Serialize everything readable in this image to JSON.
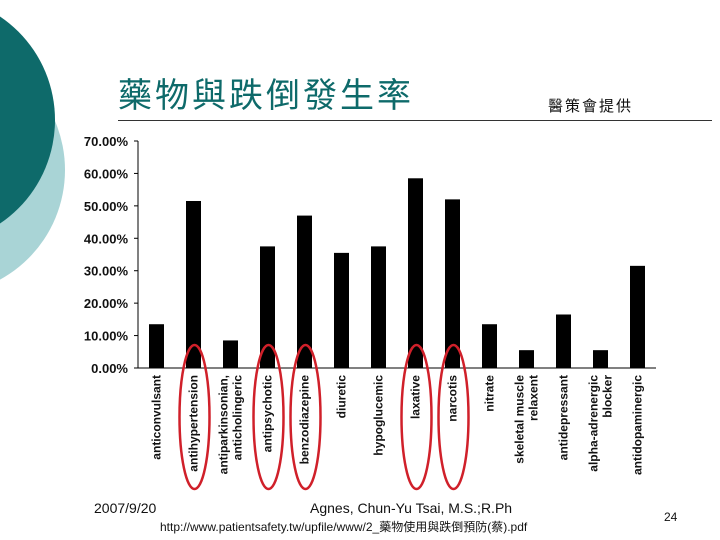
{
  "slide": {
    "title": "藥物與跌倒發生率",
    "credit": "醫策會提供",
    "date": "2007/9/20",
    "author": "Agnes, Chun-Yu Tsai, M.S.;R.Ph",
    "url": "http://www.patientsafety.tw/upfile/www/2_藥物使用與跌倒預防(蔡).pdf",
    "page_number": "24",
    "accent_color": "#0e6a6a",
    "circle_color": "#d0202a"
  },
  "chart_data": {
    "type": "bar",
    "title": "",
    "xlabel": "",
    "ylabel": "",
    "ylim": [
      0,
      70
    ],
    "yticks": [
      "0.00%",
      "10.00%",
      "20.00%",
      "30.00%",
      "40.00%",
      "50.00%",
      "60.00%",
      "70.00%"
    ],
    "categories": [
      [
        "anticonvulsant"
      ],
      [
        "antihypertension"
      ],
      [
        "antiparkinsonian,",
        "anticholingeric"
      ],
      [
        "antipsychotic"
      ],
      [
        "benzodiazepine"
      ],
      [
        "diuretic"
      ],
      [
        "hypoglucemic"
      ],
      [
        "laxative"
      ],
      [
        "narcotis"
      ],
      [
        "nitrate"
      ],
      [
        "skeletal muscle",
        "relaxent"
      ],
      [
        "antidepressant"
      ],
      [
        "alpha-adrenergic",
        "blocker"
      ],
      [
        "antidopaminergic"
      ]
    ],
    "values": [
      13.5,
      51.5,
      8.5,
      37.5,
      47,
      35.5,
      37.5,
      58.5,
      52,
      13.5,
      5.5,
      16.5,
      5.5,
      31.5
    ],
    "bar_color": "#000000",
    "circled_categories": [
      1,
      3,
      4,
      7,
      8
    ],
    "grid": false
  }
}
